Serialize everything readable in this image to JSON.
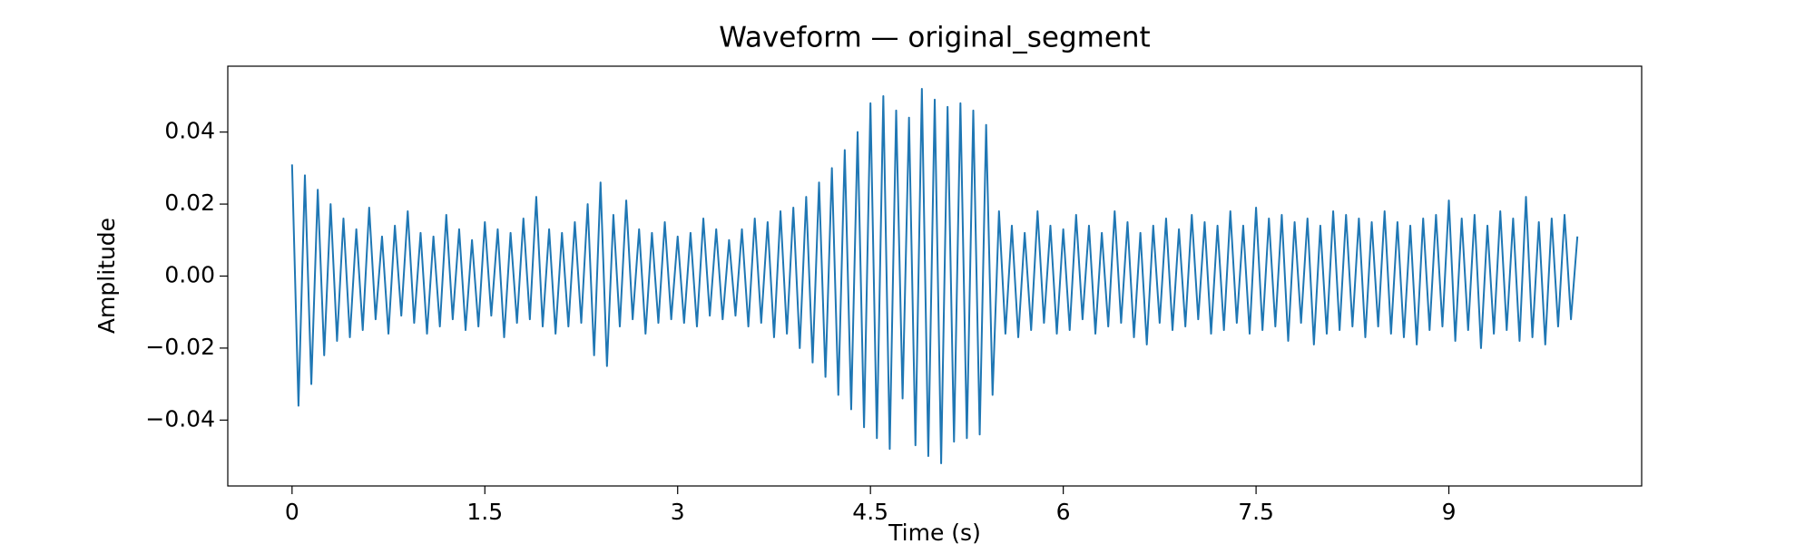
{
  "chart_data": {
    "type": "line",
    "title": "Waveform — original_segment",
    "xlabel": "Time (s)",
    "ylabel": "Amplitude",
    "color": "#1f77b4",
    "xlim": [
      -0.5,
      10.5
    ],
    "ylim": [
      -0.0583,
      0.0583
    ],
    "xticks": [
      0,
      1.5,
      3,
      4.5,
      6,
      7.5,
      9
    ],
    "yticks": [
      {
        "value": -0.04,
        "label": "−0.04"
      },
      {
        "value": -0.02,
        "label": "−0.02"
      },
      {
        "value": 0,
        "label": "0.00"
      },
      0.02,
      0.04
    ],
    "x": [
      0,
      0.05,
      0.1,
      0.15,
      0.2,
      0.25,
      0.3,
      0.35,
      0.4,
      0.45,
      0.5,
      0.55,
      0.6,
      0.65,
      0.7,
      0.75,
      0.8,
      0.85,
      0.9,
      0.95,
      1,
      1.05,
      1.1,
      1.15,
      1.2,
      1.25,
      1.3,
      1.35,
      1.4,
      1.45,
      1.5,
      1.55,
      1.6,
      1.65,
      1.7,
      1.75,
      1.8,
      1.85,
      1.9,
      1.95,
      2,
      2.05,
      2.1,
      2.15,
      2.2,
      2.25,
      2.3,
      2.35,
      2.4,
      2.45,
      2.5,
      2.55,
      2.6,
      2.65,
      2.7,
      2.75,
      2.8,
      2.85,
      2.9,
      2.95,
      3,
      3.05,
      3.1,
      3.15,
      3.2,
      3.25,
      3.3,
      3.35,
      3.4,
      3.45,
      3.5,
      3.55,
      3.6,
      3.65,
      3.7,
      3.75,
      3.8,
      3.85,
      3.9,
      3.95,
      4,
      4.05,
      4.1,
      4.15,
      4.2,
      4.25,
      4.3,
      4.35,
      4.4,
      4.45,
      4.5,
      4.55,
      4.6,
      4.65,
      4.7,
      4.75,
      4.8,
      4.85,
      4.9,
      4.95,
      5,
      5.05,
      5.1,
      5.15,
      5.2,
      5.25,
      5.3,
      5.35,
      5.4,
      5.45,
      5.5,
      5.55,
      5.6,
      5.65,
      5.7,
      5.75,
      5.8,
      5.85,
      5.9,
      5.95,
      6,
      6.05,
      6.1,
      6.15,
      6.2,
      6.25,
      6.3,
      6.35,
      6.4,
      6.45,
      6.5,
      6.55,
      6.6,
      6.65,
      6.7,
      6.75,
      6.8,
      6.85,
      6.9,
      6.95,
      7,
      7.05,
      7.1,
      7.15,
      7.2,
      7.25,
      7.3,
      7.35,
      7.4,
      7.45,
      7.5,
      7.55,
      7.6,
      7.65,
      7.7,
      7.75,
      7.8,
      7.85,
      7.9,
      7.95,
      8,
      8.05,
      8.1,
      8.15,
      8.2,
      8.25,
      8.3,
      8.35,
      8.4,
      8.45,
      8.5,
      8.55,
      8.6,
      8.65,
      8.7,
      8.75,
      8.8,
      8.85,
      8.9,
      8.95,
      9,
      9.05,
      9.1,
      9.15,
      9.2,
      9.25,
      9.3,
      9.35,
      9.4,
      9.45,
      9.5,
      9.55,
      9.6,
      9.65,
      9.7,
      9.75,
      9.8,
      9.85,
      9.9,
      9.95,
      10
    ],
    "values": [
      0.031,
      -0.036,
      0.028,
      -0.03,
      0.024,
      -0.022,
      0.02,
      -0.018,
      0.016,
      -0.017,
      0.013,
      -0.015,
      0.019,
      -0.012,
      0.011,
      -0.016,
      0.014,
      -0.011,
      0.018,
      -0.013,
      0.012,
      -0.016,
      0.011,
      -0.014,
      0.017,
      -0.012,
      0.013,
      -0.015,
      0.01,
      -0.014,
      0.015,
      -0.011,
      0.013,
      -0.017,
      0.012,
      -0.013,
      0.016,
      -0.012,
      0.022,
      -0.014,
      0.013,
      -0.016,
      0.012,
      -0.014,
      0.015,
      -0.013,
      0.02,
      -0.022,
      0.026,
      -0.025,
      0.017,
      -0.014,
      0.021,
      -0.012,
      0.013,
      -0.016,
      0.012,
      -0.013,
      0.015,
      -0.012,
      0.011,
      -0.013,
      0.012,
      -0.014,
      0.016,
      -0.011,
      0.013,
      -0.012,
      0.01,
      -0.011,
      0.013,
      -0.014,
      0.016,
      -0.013,
      0.015,
      -0.017,
      0.018,
      -0.016,
      0.019,
      -0.02,
      0.022,
      -0.024,
      0.026,
      -0.028,
      0.03,
      -0.033,
      0.035,
      -0.037,
      0.04,
      -0.042,
      0.048,
      -0.045,
      0.05,
      -0.048,
      0.046,
      -0.034,
      0.044,
      -0.047,
      0.052,
      -0.05,
      0.049,
      -0.052,
      0.047,
      -0.046,
      0.048,
      -0.045,
      0.046,
      -0.044,
      0.042,
      -0.033,
      0.018,
      -0.016,
      0.014,
      -0.017,
      0.012,
      -0.015,
      0.018,
      -0.013,
      0.014,
      -0.016,
      0.013,
      -0.015,
      0.017,
      -0.012,
      0.014,
      -0.016,
      0.012,
      -0.014,
      0.018,
      -0.013,
      0.015,
      -0.017,
      0.012,
      -0.019,
      0.014,
      -0.013,
      0.016,
      -0.015,
      0.013,
      -0.014,
      0.017,
      -0.012,
      0.015,
      -0.016,
      0.014,
      -0.015,
      0.018,
      -0.013,
      0.014,
      -0.016,
      0.019,
      -0.015,
      0.016,
      -0.014,
      0.017,
      -0.018,
      0.015,
      -0.013,
      0.016,
      -0.019,
      0.014,
      -0.016,
      0.018,
      -0.015,
      0.017,
      -0.014,
      0.016,
      -0.017,
      0.015,
      -0.014,
      0.018,
      -0.016,
      0.015,
      -0.017,
      0.014,
      -0.019,
      0.016,
      -0.015,
      0.017,
      -0.014,
      0.021,
      -0.018,
      0.016,
      -0.015,
      0.017,
      -0.02,
      0.014,
      -0.016,
      0.018,
      -0.015,
      0.016,
      -0.018,
      0.022,
      -0.017,
      0.015,
      -0.019,
      0.016,
      -0.014,
      0.017,
      -0.012,
      0.011
    ]
  }
}
